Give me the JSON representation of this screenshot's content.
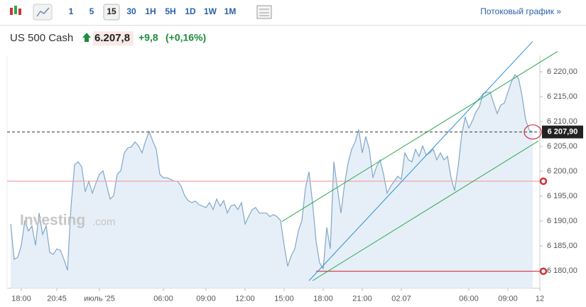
{
  "toolbar": {
    "intervals": [
      {
        "label": "1",
        "active": false
      },
      {
        "label": "5",
        "active": false
      },
      {
        "label": "15",
        "active": true
      },
      {
        "label": "30",
        "active": false
      },
      {
        "label": "1H",
        "active": false
      },
      {
        "label": "5H",
        "active": false
      },
      {
        "label": "1D",
        "active": false
      },
      {
        "label": "1W",
        "active": false
      },
      {
        "label": "1M",
        "active": false
      }
    ],
    "stream_link": "Потоковый график »"
  },
  "header": {
    "instrument": "US 500 Cash",
    "price": "6.207,8",
    "change": "+9,8",
    "change_pct": "(+0,16%)"
  },
  "watermark": {
    "brand": "Investing",
    "suffix": ".com"
  },
  "chart_data": {
    "type": "area",
    "series": [
      {
        "name": "US 500 Cash",
        "color": "#7fa7c9",
        "fill": "#e6eff8",
        "values": [
          6189.4,
          6182.3,
          6182.7,
          6185.1,
          6190.1,
          6188,
          6189,
          6185.1,
          6191.6,
          6187.3,
          6189,
          6183.7,
          6183.3,
          6184.4,
          6184.1,
          6182.3,
          6180.1,
          6193,
          6201.3,
          6201.9,
          6200.9,
          6195.9,
          6198,
          6195.6,
          6197.6,
          6199.4,
          6200.1,
          6197.3,
          6194.4,
          6195.1,
          6199.4,
          6200.1,
          6203.7,
          6204.7,
          6204.9,
          6205.9,
          6205.1,
          6203.7,
          6206.1,
          6208,
          6206.1,
          6204.4,
          6199.4,
          6198.7,
          6198.7,
          6198.4,
          6198,
          6198,
          6197,
          6195.1,
          6194.1,
          6193.7,
          6194,
          6193.3,
          6193,
          6192.7,
          6193.7,
          6192.3,
          6194.4,
          6193,
          6194.1,
          6191.6,
          6193,
          6193.3,
          6192.3,
          6193.7,
          6189.4,
          6190.9,
          6192.3,
          6192.7,
          6191.6,
          6191.6,
          6191.6,
          6190.9,
          6191.3,
          6190.9,
          6190.1,
          6185.1,
          6180.9,
          6183,
          6184.4,
          6188,
          6190.1,
          6196.6,
          6199.9,
          6193.7,
          6185.9,
          6181.6,
          6180.4,
          6188.7,
          6184.4,
          6201.9,
          6196.6,
          6191.6,
          6197.3,
          6201.6,
          6204.4,
          6205.9,
          6208.4,
          6203.7,
          6207,
          6204.4,
          6198.7,
          6200.9,
          6202.3,
          6199.4,
          6195.6,
          6197,
          6198,
          6199,
          6198.4,
          6203.7,
          6202.3,
          6201.9,
          6204.4,
          6203,
          6205.1,
          6203.3,
          6203.7,
          6204.4,
          6202.3,
          6203.7,
          6202.3,
          6203,
          6198.7,
          6196.1,
          6200.9,
          6207.3,
          6210.9,
          6208.7,
          6210.1,
          6211.9,
          6213,
          6215.6,
          6215.9,
          6215.9,
          6213.7,
          6211.6,
          6213.3,
          6213.7,
          6215.9,
          6218,
          6219.4,
          6218.7,
          6215.1,
          6210.4,
          6208.3,
          6207.9
        ]
      }
    ],
    "xlim": [
      -1,
      149
    ],
    "xticks": [
      {
        "value": 3,
        "label": "18:00"
      },
      {
        "value": 13,
        "label": "20:45"
      },
      {
        "value": 25,
        "label": "июль '25"
      },
      {
        "value": 43,
        "label": "06:00"
      },
      {
        "value": 55,
        "label": "09:00"
      },
      {
        "value": 66,
        "label": "12:00"
      },
      {
        "value": 77,
        "label": "15:00"
      },
      {
        "value": 88,
        "label": "18:00"
      },
      {
        "value": 99,
        "label": "21:00"
      },
      {
        "value": 110,
        "label": "02.07"
      },
      {
        "value": 129,
        "label": "06:00"
      },
      {
        "value": 140,
        "label": "09:00"
      },
      {
        "value": 149,
        "label": "12"
      }
    ],
    "ylim": [
      6176.5,
      6223.3
    ],
    "yticks": [
      {
        "value": 6220,
        "label": "6 220,00"
      },
      {
        "value": 6215,
        "label": "6 215,00"
      },
      {
        "value": 6210,
        "label": "6 210,00"
      },
      {
        "value": 6205,
        "label": "6 205,00"
      },
      {
        "value": 6200,
        "label": "6 200,00"
      },
      {
        "value": 6195,
        "label": "6 195,00"
      },
      {
        "value": 6190,
        "label": "6 190,00"
      },
      {
        "value": 6185,
        "label": "6 185,00"
      },
      {
        "value": 6180,
        "label": "6 180,00"
      }
    ],
    "last_price": {
      "value": 6207.9,
      "label": "6 207,90"
    },
    "trendlines": [
      {
        "color": "#2a8fd8",
        "points": [
          [
            84,
            6178
          ],
          [
            147,
            6226.1
          ]
        ]
      },
      {
        "color": "#2fa84f",
        "points": [
          [
            76.4,
            6189.9
          ],
          [
            154,
            6224.1
          ]
        ]
      },
      {
        "color": "#2fa84f",
        "points": [
          [
            85,
            6178
          ],
          [
            148.6,
            6206.1
          ]
        ]
      }
    ],
    "levels": [
      {
        "value": 6198,
        "color": "#f2a5a5",
        "start": -1
      },
      {
        "value": 6179.9,
        "color": "#d0313b",
        "start": 86
      }
    ]
  }
}
